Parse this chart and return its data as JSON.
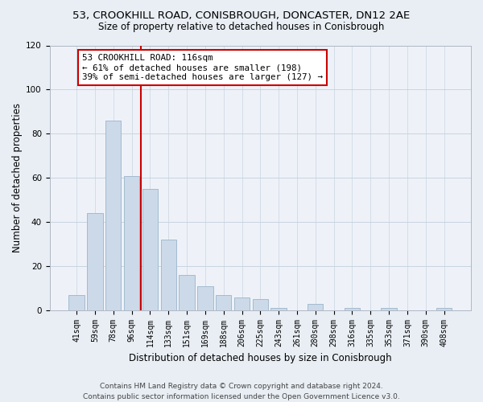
{
  "title": "53, CROOKHILL ROAD, CONISBROUGH, DONCASTER, DN12 2AE",
  "subtitle": "Size of property relative to detached houses in Conisbrough",
  "xlabel": "Distribution of detached houses by size in Conisbrough",
  "ylabel": "Number of detached properties",
  "bar_labels": [
    "41sqm",
    "59sqm",
    "78sqm",
    "96sqm",
    "114sqm",
    "133sqm",
    "151sqm",
    "169sqm",
    "188sqm",
    "206sqm",
    "225sqm",
    "243sqm",
    "261sqm",
    "280sqm",
    "298sqm",
    "316sqm",
    "335sqm",
    "353sqm",
    "371sqm",
    "390sqm",
    "408sqm"
  ],
  "bar_values": [
    7,
    44,
    86,
    61,
    55,
    32,
    16,
    11,
    7,
    6,
    5,
    1,
    0,
    3,
    0,
    1,
    0,
    1,
    0,
    0,
    1
  ],
  "bar_color": "#ccd9e8",
  "bar_edge_color": "#9ab4cc",
  "vline_x": 3.5,
  "vline_color": "#cc0000",
  "annotation_text": "53 CROOKHILL ROAD: 116sqm\n← 61% of detached houses are smaller (198)\n39% of semi-detached houses are larger (127) →",
  "annotation_box_color": "#ffffff",
  "annotation_box_edge": "#cc0000",
  "ylim": [
    0,
    120
  ],
  "yticks": [
    0,
    20,
    40,
    60,
    80,
    100,
    120
  ],
  "footer": "Contains HM Land Registry data © Crown copyright and database right 2024.\nContains public sector information licensed under the Open Government Licence v3.0.",
  "bg_color": "#e8eef4",
  "plot_bg_color": "#eef2f8",
  "title_fontsize": 9.5,
  "subtitle_fontsize": 8.5,
  "axis_label_fontsize": 8.5,
  "tick_fontsize": 7,
  "footer_fontsize": 6.5,
  "grid_color": "#c8d4e0"
}
